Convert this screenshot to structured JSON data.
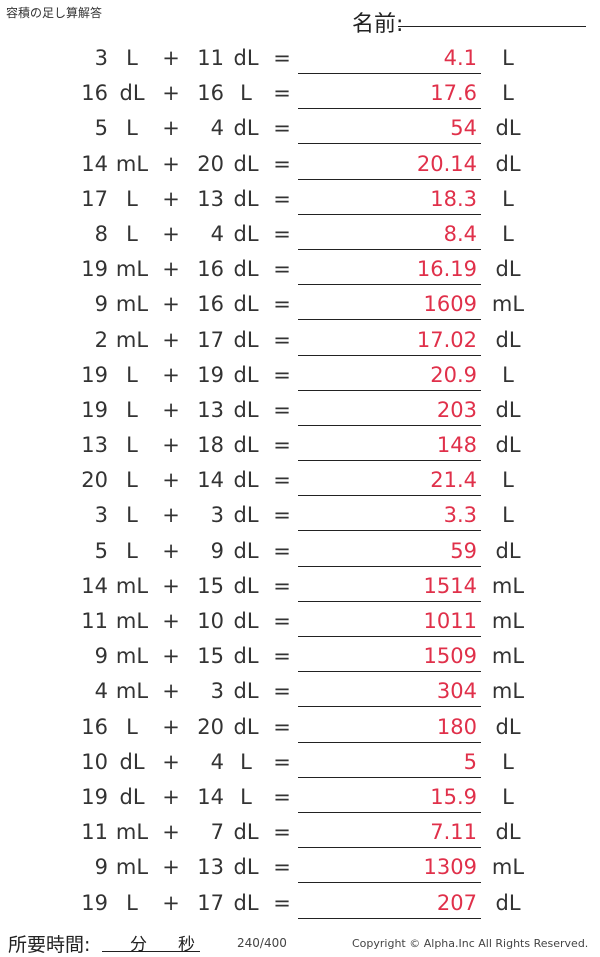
{
  "header": {
    "title": "容積の足し算解答",
    "name_label": "名前:"
  },
  "operator": "+",
  "equals": "=",
  "problems": [
    {
      "a": "3",
      "ua": "L",
      "b": "11",
      "ub": "dL",
      "ans": "4.1",
      "uc": "L"
    },
    {
      "a": "16",
      "ua": "dL",
      "b": "16",
      "ub": "L",
      "ans": "17.6",
      "uc": "L"
    },
    {
      "a": "5",
      "ua": "L",
      "b": "4",
      "ub": "dL",
      "ans": "54",
      "uc": "dL"
    },
    {
      "a": "14",
      "ua": "mL",
      "b": "20",
      "ub": "dL",
      "ans": "20.14",
      "uc": "dL"
    },
    {
      "a": "17",
      "ua": "L",
      "b": "13",
      "ub": "dL",
      "ans": "18.3",
      "uc": "L"
    },
    {
      "a": "8",
      "ua": "L",
      "b": "4",
      "ub": "dL",
      "ans": "8.4",
      "uc": "L"
    },
    {
      "a": "19",
      "ua": "mL",
      "b": "16",
      "ub": "dL",
      "ans": "16.19",
      "uc": "dL"
    },
    {
      "a": "9",
      "ua": "mL",
      "b": "16",
      "ub": "dL",
      "ans": "1609",
      "uc": "mL"
    },
    {
      "a": "2",
      "ua": "mL",
      "b": "17",
      "ub": "dL",
      "ans": "17.02",
      "uc": "dL"
    },
    {
      "a": "19",
      "ua": "L",
      "b": "19",
      "ub": "dL",
      "ans": "20.9",
      "uc": "L"
    },
    {
      "a": "19",
      "ua": "L",
      "b": "13",
      "ub": "dL",
      "ans": "203",
      "uc": "dL"
    },
    {
      "a": "13",
      "ua": "L",
      "b": "18",
      "ub": "dL",
      "ans": "148",
      "uc": "dL"
    },
    {
      "a": "20",
      "ua": "L",
      "b": "14",
      "ub": "dL",
      "ans": "21.4",
      "uc": "L"
    },
    {
      "a": "3",
      "ua": "L",
      "b": "3",
      "ub": "dL",
      "ans": "3.3",
      "uc": "L"
    },
    {
      "a": "5",
      "ua": "L",
      "b": "9",
      "ub": "dL",
      "ans": "59",
      "uc": "dL"
    },
    {
      "a": "14",
      "ua": "mL",
      "b": "15",
      "ub": "dL",
      "ans": "1514",
      "uc": "mL"
    },
    {
      "a": "11",
      "ua": "mL",
      "b": "10",
      "ub": "dL",
      "ans": "1011",
      "uc": "mL"
    },
    {
      "a": "9",
      "ua": "mL",
      "b": "15",
      "ub": "dL",
      "ans": "1509",
      "uc": "mL"
    },
    {
      "a": "4",
      "ua": "mL",
      "b": "3",
      "ub": "dL",
      "ans": "304",
      "uc": "mL"
    },
    {
      "a": "16",
      "ua": "L",
      "b": "20",
      "ub": "dL",
      "ans": "180",
      "uc": "dL"
    },
    {
      "a": "10",
      "ua": "dL",
      "b": "4",
      "ub": "L",
      "ans": "5",
      "uc": "L"
    },
    {
      "a": "19",
      "ua": "dL",
      "b": "14",
      "ub": "L",
      "ans": "15.9",
      "uc": "L"
    },
    {
      "a": "11",
      "ua": "mL",
      "b": "7",
      "ub": "dL",
      "ans": "7.11",
      "uc": "dL"
    },
    {
      "a": "9",
      "ua": "mL",
      "b": "13",
      "ub": "dL",
      "ans": "1309",
      "uc": "mL"
    },
    {
      "a": "19",
      "ua": "L",
      "b": "17",
      "ub": "dL",
      "ans": "207",
      "uc": "dL"
    }
  ],
  "footer": {
    "time_label": "所要時間:",
    "minutes": "分",
    "seconds": "秒",
    "page": "240/400",
    "copyright": "Copyright © Alpha.Inc All Rights Reserved."
  },
  "colors": {
    "answer": "#e0304a",
    "text": "#333333"
  }
}
